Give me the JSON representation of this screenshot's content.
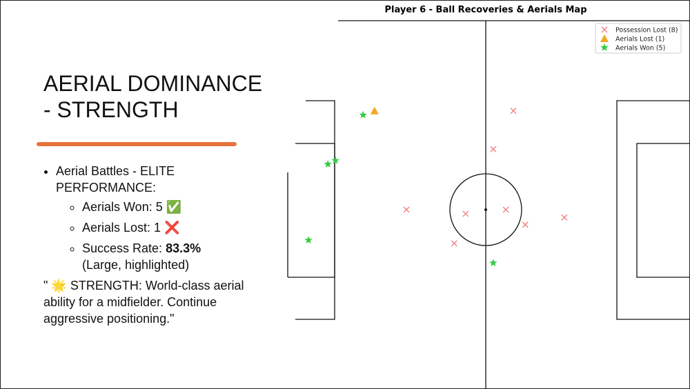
{
  "slide": {
    "title": "AERIAL DOMINANCE - STRENGTH",
    "bullet": "Aerial Battles - ELITE PERFORMANCE:",
    "sub_bullets": [
      {
        "label": "Aerials Won: 5",
        "icon": "✅"
      },
      {
        "label": "Aerials Lost: 1",
        "icon": "❌"
      }
    ],
    "success_label": "Success Rate:",
    "success_value": "83.3%",
    "success_note": "(Large, highlighted)",
    "quote_open": "\"",
    "quote_icon": "🌟",
    "quote": "STRENGTH: World-class aerial ability for a midfielder. Continue aggressive positioning.\""
  },
  "chart_data": {
    "type": "scatter",
    "title": "Player 6 - Ball Recoveries & Aerials Map",
    "xlim": [
      0,
      120
    ],
    "ylim": [
      0,
      80
    ],
    "y_inverted": true,
    "legend": "upper right",
    "series": [
      {
        "name": "Possession Lost (8)",
        "color": "#f08080",
        "marker": "x",
        "x": [
          67.7,
          62.1,
          37.9,
          54.4,
          65.6,
          71.0,
          81.9,
          51.2
        ],
        "y": [
          18.3,
          26.7,
          40.0,
          40.9,
          40.0,
          43.3,
          41.7,
          47.4
        ]
      },
      {
        "name": "Aerials Lost (1)",
        "color": "#f5a623",
        "marker": "triangle",
        "x": [
          29.0
        ],
        "y": [
          18.3
        ]
      },
      {
        "name": "Aerials Won (5)",
        "color": "#2ecc40",
        "marker": "star",
        "x": [
          25.8,
          18.1,
          16.0,
          10.6,
          62.1
        ],
        "y": [
          19.2,
          29.2,
          30.0,
          46.7,
          51.7
        ]
      }
    ]
  }
}
